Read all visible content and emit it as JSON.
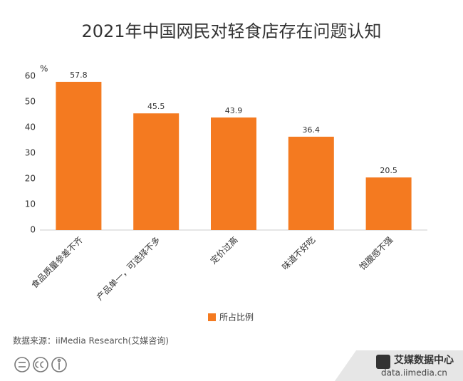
{
  "chart_data": {
    "type": "bar",
    "title": "2021年中国网民对轻食店存在问题认知",
    "y_unit": "%",
    "categories": [
      "食品质量参差不齐",
      "产品单一，可选择不多",
      "定价过高",
      "味道不好吃",
      "饱腹感不强"
    ],
    "series": [
      {
        "name": "所占比例",
        "color": "#f47a20",
        "values": [
          57.8,
          45.5,
          43.9,
          36.4,
          20.5
        ]
      }
    ],
    "ylim": [
      0,
      60
    ],
    "yticks": [
      0,
      10,
      20,
      30,
      40,
      50,
      60
    ],
    "grid": false,
    "source": "数据来源：iiMedia Research(艾媒咨询)",
    "logo_name": "艾媒数据中心",
    "logo_url": "data.iimedia.cn"
  }
}
